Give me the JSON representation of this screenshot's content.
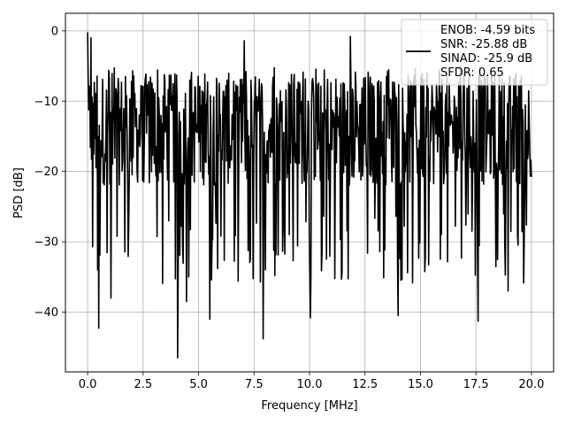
{
  "chart_data": {
    "type": "line",
    "xlabel": "Frequency [MHz]",
    "ylabel": "PSD [dB]",
    "xlim": [
      -1.0,
      21.0
    ],
    "ylim": [
      -48.5,
      2.5
    ],
    "x_ticks": [
      0.0,
      2.5,
      5.0,
      7.5,
      10.0,
      12.5,
      15.0,
      17.5,
      20.0
    ],
    "x_tick_labels": [
      "0.0",
      "2.5",
      "5.0",
      "7.5",
      "10.0",
      "12.5",
      "15.0",
      "17.5",
      "20.0"
    ],
    "y_ticks": [
      0,
      -10,
      -20,
      -30,
      -40
    ],
    "y_tick_labels": [
      "0",
      "−10",
      "−20",
      "−30",
      "−40"
    ],
    "grid": true,
    "legend_position": "top-right",
    "legend_lines": [
      "ENOB: -4.59 bits",
      "SNR: -25.88 dB",
      "SINAD: -25.9 dB",
      "SFDR: 0.65"
    ],
    "line_color": "#000000",
    "series": [
      {
        "x_range": [
          0.0,
          20.0
        ],
        "points": 800,
        "typical_range_db": [
          -22,
          -6
        ],
        "notable_points": [
          {
            "x": 0.0,
            "y": -0.2
          },
          {
            "x": 0.15,
            "y": -1.0
          },
          {
            "x": 0.45,
            "y": -34.0
          },
          {
            "x": 0.5,
            "y": -42.3
          },
          {
            "x": 1.05,
            "y": -38.0
          },
          {
            "x": 4.05,
            "y": -46.5
          },
          {
            "x": 4.45,
            "y": -38.5
          },
          {
            "x": 5.5,
            "y": -41.0
          },
          {
            "x": 7.05,
            "y": -1.4
          },
          {
            "x": 7.9,
            "y": -43.8
          },
          {
            "x": 10.05,
            "y": -40.8
          },
          {
            "x": 11.85,
            "y": -0.8
          },
          {
            "x": 14.0,
            "y": -40.5
          },
          {
            "x": 17.6,
            "y": -41.3
          },
          {
            "x": 18.95,
            "y": -37.0
          }
        ]
      }
    ]
  }
}
